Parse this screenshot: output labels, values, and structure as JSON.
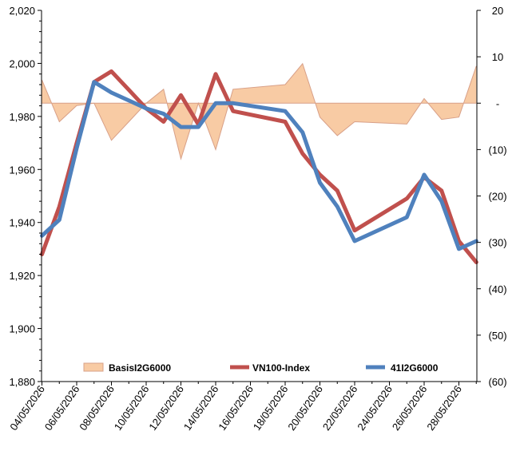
{
  "chart_data": {
    "type": "line",
    "dates": [
      "04/05/2026",
      "05/05/2026",
      "06/05/2026",
      "07/05/2026",
      "08/05/2026",
      "09/05/2026",
      "10/05/2026",
      "11/05/2026",
      "12/05/2026",
      "13/05/2026",
      "14/05/2026",
      "15/05/2026",
      "16/05/2026",
      "17/05/2026",
      "18/05/2026",
      "19/05/2026",
      "20/05/2026",
      "21/05/2026",
      "22/05/2026",
      "23/05/2026",
      "24/05/2026",
      "25/05/2026",
      "26/05/2026",
      "27/05/2026",
      "28/05/2026",
      "29/05/2026"
    ],
    "x_tick_labels": [
      "04/05/2026",
      "06/05/2026",
      "08/05/2026",
      "10/05/2026",
      "12/05/2026",
      "14/05/2026",
      "16/05/2026",
      "18/05/2026",
      "20/05/2026",
      "22/05/2026",
      "24/05/2026",
      "26/05/2026",
      "28/05/2026"
    ],
    "y_left": {
      "min": 1880,
      "max": 2020,
      "ticks": [
        "1,880",
        "1,900",
        "1,920",
        "1,940",
        "1,960",
        "1,980",
        "2,000",
        "2,020"
      ]
    },
    "y_right": {
      "min": -60,
      "max": 20,
      "ticks": [
        "(60)",
        "(50)",
        "(40)",
        "(30)",
        "(20)",
        "(10)",
        "-",
        "10",
        "20"
      ]
    },
    "series": [
      {
        "name": "BasisI2G6000",
        "axis": "right",
        "kind": "area",
        "color": "#f8cba4",
        "stroke": "#d8a088",
        "points": [
          [
            0,
            5
          ],
          [
            1,
            -4
          ],
          [
            2,
            -0.5
          ],
          [
            3,
            0
          ],
          [
            4,
            -8
          ],
          [
            5,
            -4
          ],
          [
            6,
            0
          ],
          [
            7,
            3
          ],
          [
            8,
            -12
          ],
          [
            9,
            0
          ],
          [
            10,
            -10
          ],
          [
            11,
            3
          ],
          [
            14,
            4
          ],
          [
            15,
            8.5
          ],
          [
            16,
            -3
          ],
          [
            17,
            -7
          ],
          [
            18,
            -4
          ],
          [
            21,
            -4.5
          ],
          [
            22,
            1
          ],
          [
            23,
            -3.5
          ],
          [
            24,
            -3
          ],
          [
            25,
            8
          ]
        ]
      },
      {
        "name": "VN100-Index",
        "axis": "left",
        "kind": "line",
        "color": "#c0504d",
        "points": [
          [
            0,
            1928
          ],
          [
            1,
            1946
          ],
          [
            2,
            1970
          ],
          [
            3,
            1993
          ],
          [
            4,
            1997
          ],
          [
            5,
            1990
          ],
          [
            6,
            1983
          ],
          [
            7,
            1978
          ],
          [
            8,
            1988
          ],
          [
            9,
            1977
          ],
          [
            10,
            1996
          ],
          [
            11,
            1982
          ],
          [
            14,
            1978
          ],
          [
            15,
            1966
          ],
          [
            16,
            1958
          ],
          [
            17,
            1952
          ],
          [
            18,
            1937
          ],
          [
            21,
            1949
          ],
          [
            22,
            1957
          ],
          [
            23,
            1952
          ],
          [
            24,
            1933
          ],
          [
            25,
            1925
          ]
        ]
      },
      {
        "name": "41I2G6000",
        "axis": "left",
        "kind": "line",
        "color": "#4f81bd",
        "points": [
          [
            0,
            1935
          ],
          [
            1,
            1941
          ],
          [
            2,
            1968
          ],
          [
            3,
            1993
          ],
          [
            4,
            1989
          ],
          [
            5,
            1986
          ],
          [
            6,
            1983
          ],
          [
            7,
            1981
          ],
          [
            8,
            1976
          ],
          [
            9,
            1976
          ],
          [
            10,
            1985
          ],
          [
            11,
            1985
          ],
          [
            14,
            1982
          ],
          [
            15,
            1974
          ],
          [
            16,
            1955
          ],
          [
            17,
            1946
          ],
          [
            18,
            1933
          ],
          [
            21,
            1942
          ],
          [
            22,
            1958
          ],
          [
            23,
            1948
          ],
          [
            24,
            1930
          ],
          [
            25,
            1933
          ]
        ]
      }
    ],
    "legend": {
      "placement": "bottom-inside",
      "labels": [
        "BasisI2G6000",
        "VN100-Index",
        "41I2G6000"
      ]
    },
    "grid": false
  }
}
